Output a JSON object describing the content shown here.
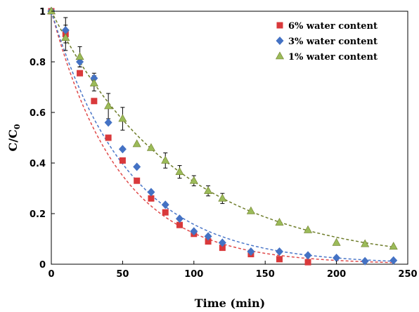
{
  "chart_data": {
    "type": "scatter",
    "xlabel": "Time (min)",
    "ylabel_main": "C/C",
    "ylabel_sub": "0",
    "xlim": [
      0,
      250
    ],
    "ylim": [
      0,
      1
    ],
    "xticks": [
      0,
      50,
      100,
      150,
      200,
      250
    ],
    "yticks": [
      0,
      0.2,
      0.4,
      0.6,
      0.8,
      1
    ],
    "ytick_labels": [
      "0",
      "0.2",
      "0.4",
      "0.6",
      "0.8",
      "1"
    ],
    "grid": false,
    "legend_position": "top-right",
    "series": [
      {
        "name": "6% water content",
        "marker": "square",
        "color": "#d9393b",
        "fit_color": "#e04a4a",
        "fit_k": 0.021,
        "x": [
          0,
          10,
          20,
          30,
          40,
          50,
          60,
          70,
          80,
          90,
          100,
          110,
          120,
          140,
          160,
          180
        ],
        "y": [
          1.0,
          0.91,
          0.755,
          0.645,
          0.5,
          0.41,
          0.33,
          0.26,
          0.205,
          0.155,
          0.12,
          0.09,
          0.065,
          0.04,
          0.02,
          0.008
        ]
      },
      {
        "name": "3% water content",
        "marker": "diamond",
        "color": "#4472c4",
        "fit_color": "#4a76c8",
        "fit_k": 0.0185,
        "x": [
          0,
          10,
          20,
          30,
          40,
          50,
          60,
          70,
          80,
          90,
          100,
          110,
          120,
          140,
          160,
          180,
          200,
          220,
          240
        ],
        "y": [
          1.0,
          0.925,
          0.8,
          0.735,
          0.56,
          0.455,
          0.385,
          0.285,
          0.235,
          0.18,
          0.13,
          0.11,
          0.085,
          0.05,
          0.05,
          0.035,
          0.025,
          0.012,
          0.015
        ],
        "err": [
          0,
          0.05,
          0.02,
          0.02,
          0,
          0,
          0,
          0,
          0,
          0,
          0,
          0,
          0,
          0,
          0,
          0,
          0,
          0,
          0
        ]
      },
      {
        "name": "1% water content",
        "marker": "triangle",
        "color": "#9bbb59",
        "fit_color": "#6e7d2a",
        "fit_k": 0.0112,
        "x": [
          0,
          10,
          20,
          30,
          40,
          50,
          60,
          70,
          80,
          90,
          100,
          110,
          120,
          140,
          160,
          180,
          200,
          220,
          240
        ],
        "y": [
          1.0,
          0.895,
          0.82,
          0.715,
          0.625,
          0.575,
          0.475,
          0.46,
          0.41,
          0.365,
          0.33,
          0.29,
          0.26,
          0.21,
          0.165,
          0.135,
          0.085,
          0.08,
          0.07
        ],
        "err": [
          0,
          0.05,
          0.04,
          0.03,
          0.05,
          0.045,
          0,
          0,
          0.03,
          0.025,
          0.02,
          0.02,
          0.02,
          0,
          0,
          0,
          0,
          0,
          0
        ]
      }
    ]
  }
}
